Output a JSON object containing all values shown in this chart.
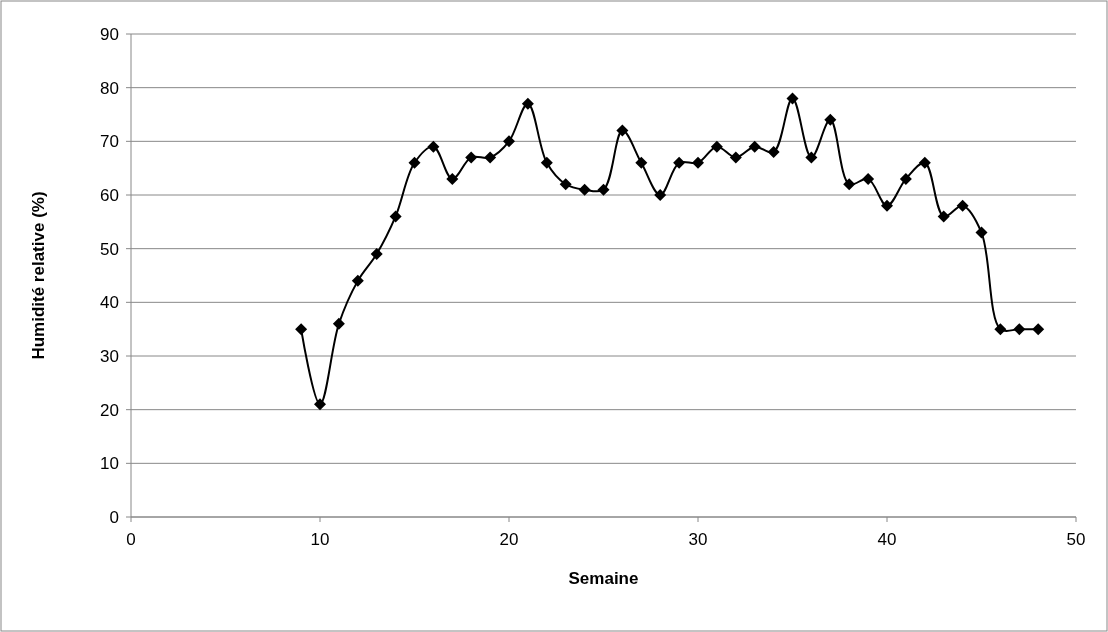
{
  "chart_data": {
    "type": "line",
    "xlabel": "Semaine",
    "ylabel": "Humidité relative (%)",
    "x": [
      9,
      10,
      11,
      12,
      13,
      14,
      15,
      16,
      17,
      18,
      19,
      20,
      21,
      22,
      23,
      24,
      25,
      26,
      27,
      28,
      29,
      30,
      31,
      32,
      33,
      34,
      35,
      36,
      37,
      38,
      39,
      40,
      41,
      42,
      43,
      44,
      45,
      46,
      47,
      48
    ],
    "series": [
      {
        "color": "#000000",
        "values": [
          35,
          21,
          36,
          44,
          49,
          56,
          66,
          69,
          63,
          67,
          67,
          70,
          77,
          66,
          62,
          61,
          61,
          72,
          66,
          60,
          66,
          66,
          69,
          67,
          69,
          68,
          78,
          67,
          74,
          62,
          63,
          58,
          63,
          66,
          56,
          58,
          53,
          35,
          35,
          35
        ]
      }
    ],
    "xlim": [
      0,
      50
    ],
    "xticks": [
      0,
      10,
      20,
      30,
      40,
      50
    ],
    "ylim": [
      0,
      90
    ],
    "yticks": [
      0,
      10,
      20,
      30,
      40,
      50,
      60,
      70,
      80,
      90
    ],
    "grid": "y",
    "marker": "diamond",
    "line_style": "solid"
  }
}
